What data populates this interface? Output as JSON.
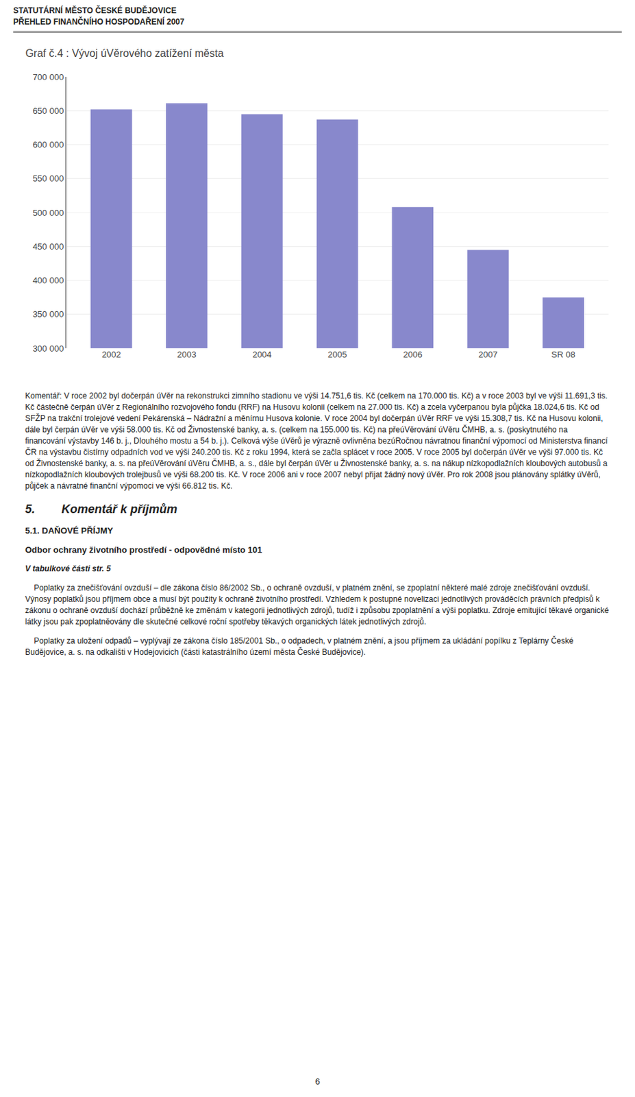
{
  "chart_data": {
    "type": "bar",
    "title": "Graf č.4 : Vývoj úVěrového zatížení města",
    "categories": [
      "2002",
      "2003",
      "2004",
      "2005",
      "2006",
      "2007",
      "SR 08"
    ],
    "values": [
      652000,
      661000,
      645000,
      637000,
      508000,
      445000,
      375000
    ],
    "color": "#8888cc",
    "ylim": [
      300000,
      700000
    ],
    "yticks": [
      {
        "value": 300000,
        "label": "300 000"
      },
      {
        "value": 350000,
        "label": "350 000"
      },
      {
        "value": 400000,
        "label": "400 000"
      },
      {
        "value": 450000,
        "label": "450 000"
      },
      {
        "value": 500000,
        "label": "500 000"
      },
      {
        "value": 550000,
        "label": "550 000"
      },
      {
        "value": 600000,
        "label": "600 000"
      },
      {
        "value": 650000,
        "label": "650 000"
      },
      {
        "value": 700000,
        "label": "700 000"
      }
    ],
    "grid": true,
    "annotations": [
      "STATUTÁRNÍ MĚSTO ČESKÉ BUDĚJOVICE",
      "PŘEHLED FINANČNÍHO HOSPODAŘENÍ 2007",
      "Komentář: V roce 2002 byl dočerpán úVěr na rekonstrukci zimního stadionu ve výši 14.751,6 tis. Kč (celkem na 170.000 tis. Kč) a v roce 2003 byl ve výši 11.691,3 tis. Kč částečně čerpán úVěr z Regionálního rozvojového fondu (RRF) na Husovu kolonii (celkem na 27.000 tis. Kč) a zcela vyčerpanou byla půjčka 18.024,6 tis. Kč od SFŽP na trakční trolejové vedení Pekárenská – Nádražní a měnírnu Husova kolonie. V roce 2004 byl dočerpán úVěr RRF ve výši 15.308,7 tis. Kč na Husovu kolonii, dále byl čerpán úVěr ve výši 58.000 tis. Kč od Živnostenské banky, a. s. (celkem na 155.000 tis. Kč) na přeúVěrování úVěru ČMHB, a. s. (poskytnutého na financování výstavby 146 b. j., Dlouhého mostu a 54 b. j.). Celková výše úVěrů je výrazně ovlivněna bezúRočnou návratnou finanční výpomocí od Ministerstva financí ČR na výstavbu čistírny odpadních vod ve výši 240.200 tis. Kč z roku 1994, která se začla splácet v roce 2005. V roce 2005 byl dočerpán úVěr ve výši 97.000 tis. Kč od Živnostenské banky, a. s. na přeúVěrování úVěru ČMHB, a. s., dále byl čerpán úVěr u Živnostenské banky, a. s. na nákup nízkopodlažních kloubových autobusů a nízkopodlažních kloubových trolejbusů ve výši 68.200 tis. Kč. V roce 2006 ani v roce 2007 nebyl přijat žádný nový úVěr. Pro rok 2008 jsou plánovány splátky úVěrů, půjček a návratné finanční výpomoci ve výši 66.812 tis. Kč.",
      "5.        Komentář k příjmům",
      "5.1. DAŇOVÉ PŘÍJMY",
      "Odbor ochrany životního prostředí - odpovědné místo 101",
      "V tabulkové části str. 5",
      "    Poplatky za znečišťování ovzduší – dle zákona číslo 86/2002 Sb., o ochraně ovzduší, v platném znění, se zpoplatní některé malé zdroje znečišťování ovzduší. Výnosy poplatků jsou příjmem obce a musí být použity k ochraně životního prostředí. Vzhledem k postupné novelizaci jednotlivých prováděcích právních předpisů k zákonu o ochraně ovzduší dochází průběžně ke změnám v kategorii jednotlivých zdrojů, tudíž i způsobu zpoplatnění a výši poplatku. Zdroje emitující těkavé organické látky jsou pak zpoplatněovány dle skutečné celkové roční spotřeby těkavých organických látek jednotlivých zdrojů.",
      "    Poplatky za uložení odpadů – vyplývají ze zákona číslo 185/2001 Sb., o odpadech, v platném znění, a jsou příjmem za ukládání popílku z Teplárny České Budějovice, a. s. na odkališti v Hodejovicich (části katastrálního území města České Budějovice).",
      "6"
    ]
  }
}
